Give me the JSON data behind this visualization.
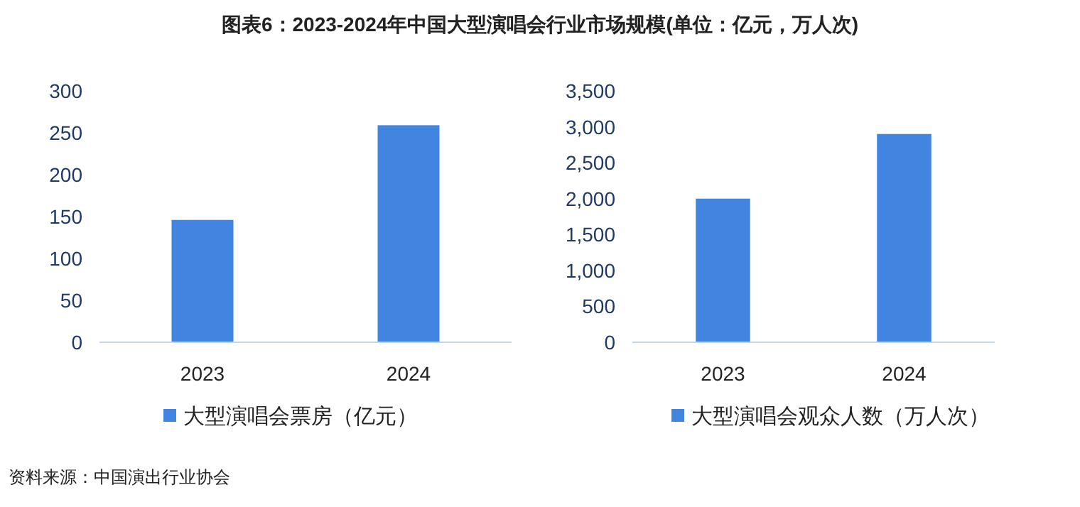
{
  "chart_data": [
    {
      "type": "bar",
      "title": "图表6：2023-2024年中国大型演唱会行业市场规模(单位：亿元，万人次)",
      "categories": [
        "2023",
        "2024"
      ],
      "series": [
        {
          "name": "大型演唱会票房（亿元）",
          "color": "#4285e0",
          "values": [
            146,
            259
          ]
        }
      ],
      "ylim": [
        0,
        300
      ],
      "yticks": [
        0,
        50,
        100,
        150,
        200,
        250,
        300
      ],
      "legend": "bottom"
    },
    {
      "type": "bar",
      "categories": [
        "2023",
        "2024"
      ],
      "series": [
        {
          "name": "大型演唱会观众人数（万人次）",
          "color": "#4285e0",
          "values": [
            2000,
            2900
          ]
        }
      ],
      "ylim": [
        0,
        3500
      ],
      "yticks": [
        {
          "value": 0,
          "label": "0"
        },
        {
          "value": 500,
          "label": "500"
        },
        {
          "value": 1000,
          "label": "1,000"
        },
        {
          "value": 1500,
          "label": "1,500"
        },
        {
          "value": 2000,
          "label": "2,000"
        },
        {
          "value": 2500,
          "label": "2,500"
        },
        {
          "value": 3000,
          "label": "3,000"
        },
        {
          "value": 3500,
          "label": "3,500"
        }
      ],
      "legend": "bottom",
      "annotations": [
        "资料来源：中国演出行业协会"
      ]
    }
  ]
}
